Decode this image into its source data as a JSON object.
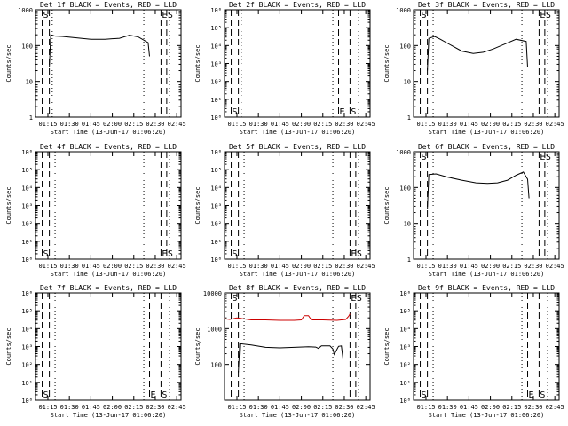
{
  "figure": {
    "xlabel": "Start Time (13-Jun-17 01:06:20)",
    "ylabel": "Counts/sec",
    "xticks": [
      "01:15",
      "01:30",
      "01:45",
      "02:00",
      "02:15",
      "02:30",
      "02:45"
    ],
    "colors": {
      "events": "#000000",
      "lld": "#cc0000"
    }
  },
  "chart_data": [
    {
      "type": "line",
      "title": "Det 1f BLACK = Events, RED = LLD",
      "ylabel": "Counts/sec",
      "yscale": "log",
      "ylim": [
        1,
        1000
      ],
      "yticks": [
        "1",
        "10",
        "100",
        "1000"
      ],
      "markers": [
        {
          "kind": "dashed",
          "x": "01:11",
          "label": "S"
        },
        {
          "kind": "dashed",
          "x": "01:16",
          "label": ""
        },
        {
          "kind": "dotted",
          "x": "01:18",
          "label": ""
        },
        {
          "kind": "dotted",
          "x": "02:22",
          "label": ""
        },
        {
          "kind": "dashed",
          "x": "02:34",
          "label": "E"
        },
        {
          "kind": "dashed",
          "x": "02:38",
          "label": "S"
        },
        {
          "kind": "dotted",
          "x": "02:40",
          "label": ""
        }
      ],
      "series": [
        {
          "color": "#000000",
          "points": [
            [
              "01:16",
              25
            ],
            [
              "01:17",
              200
            ],
            [
              "01:20",
              185
            ],
            [
              "01:25",
              180
            ],
            [
              "01:35",
              165
            ],
            [
              "01:45",
              150
            ],
            [
              "01:55",
              150
            ],
            [
              "02:05",
              160
            ],
            [
              "02:12",
              195
            ],
            [
              "02:18",
              175
            ],
            [
              "02:25",
              120
            ],
            [
              "02:26",
              50
            ]
          ]
        }
      ]
    },
    {
      "type": "line",
      "title": "Det 2f BLACK = Events, RED = LLD",
      "ylabel": "Counts/sec",
      "yscale": "log",
      "ylim": [
        1,
        1000000
      ],
      "yticks": [
        "10⁰",
        "10¹",
        "10²",
        "10³",
        "10⁴",
        "10⁵",
        "10⁶"
      ],
      "markers": [
        {
          "kind": "dashed",
          "x": "01:11",
          "label": "S"
        },
        {
          "kind": "dashed",
          "x": "01:16",
          "label": ""
        },
        {
          "kind": "dotted",
          "x": "01:18",
          "label": ""
        },
        {
          "kind": "dotted",
          "x": "02:22",
          "label": ""
        },
        {
          "kind": "dashed",
          "x": "02:26",
          "label": "E"
        },
        {
          "kind": "dashed",
          "x": "02:34",
          "label": "S"
        },
        {
          "kind": "dotted",
          "x": "02:40",
          "label": ""
        }
      ],
      "series": []
    },
    {
      "type": "line",
      "title": "Det 3f BLACK = Events, RED = LLD",
      "ylabel": "Counts/sec",
      "yscale": "log",
      "ylim": [
        1,
        1000
      ],
      "yticks": [
        "1",
        "10",
        "100",
        "1000"
      ],
      "markers": [
        {
          "kind": "dashed",
          "x": "01:11",
          "label": "S"
        },
        {
          "kind": "dashed",
          "x": "01:16",
          "label": ""
        },
        {
          "kind": "dotted",
          "x": "01:20",
          "label": ""
        },
        {
          "kind": "dotted",
          "x": "02:22",
          "label": ""
        },
        {
          "kind": "dashed",
          "x": "02:34",
          "label": "E"
        },
        {
          "kind": "dashed",
          "x": "02:38",
          "label": "S"
        },
        {
          "kind": "dotted",
          "x": "02:40",
          "label": ""
        }
      ],
      "series": [
        {
          "color": "#000000",
          "points": [
            [
              "01:16",
              20
            ],
            [
              "01:17",
              160
            ],
            [
              "01:21",
              180
            ],
            [
              "01:25",
              150
            ],
            [
              "01:32",
              105
            ],
            [
              "01:40",
              70
            ],
            [
              "01:48",
              60
            ],
            [
              "01:55",
              65
            ],
            [
              "02:02",
              80
            ],
            [
              "02:10",
              110
            ],
            [
              "02:18",
              150
            ],
            [
              "02:25",
              130
            ],
            [
              "02:26",
              25
            ]
          ]
        }
      ]
    },
    {
      "type": "line",
      "title": "Det 4f BLACK = Events, RED = LLD",
      "ylabel": "Counts/sec",
      "yscale": "log",
      "ylim": [
        1,
        1000000
      ],
      "yticks": [
        "10⁰",
        "10¹",
        "10²",
        "10³",
        "10⁴",
        "10⁵",
        "10⁶"
      ],
      "markers": [
        {
          "kind": "dashed",
          "x": "01:11",
          "label": "S"
        },
        {
          "kind": "dashed",
          "x": "01:16",
          "label": ""
        },
        {
          "kind": "dotted",
          "x": "01:20",
          "label": ""
        },
        {
          "kind": "dotted",
          "x": "02:22",
          "label": ""
        },
        {
          "kind": "dashed",
          "x": "02:34",
          "label": "E"
        },
        {
          "kind": "dashed",
          "x": "02:38",
          "label": "S"
        },
        {
          "kind": "dotted",
          "x": "02:40",
          "label": ""
        }
      ],
      "series": []
    },
    {
      "type": "line",
      "title": "Det 5f BLACK = Events, RED = LLD",
      "ylabel": "Counts/sec",
      "yscale": "log",
      "ylim": [
        1,
        1000000
      ],
      "yticks": [
        "10⁰",
        "10¹",
        "10²",
        "10³",
        "10⁴",
        "10⁵",
        "10⁶"
      ],
      "markers": [
        {
          "kind": "dashed",
          "x": "01:11",
          "label": "S"
        },
        {
          "kind": "dashed",
          "x": "01:16",
          "label": ""
        },
        {
          "kind": "dotted",
          "x": "01:20",
          "label": ""
        },
        {
          "kind": "dotted",
          "x": "02:22",
          "label": ""
        },
        {
          "kind": "dashed",
          "x": "02:34",
          "label": "E"
        },
        {
          "kind": "dashed",
          "x": "02:38",
          "label": "S"
        },
        {
          "kind": "dotted",
          "x": "02:40",
          "label": ""
        }
      ],
      "series": []
    },
    {
      "type": "line",
      "title": "Det 6f BLACK = Events, RED = LLD",
      "ylabel": "Counts/sec",
      "yscale": "log",
      "ylim": [
        1,
        1000
      ],
      "yticks": [
        "1",
        "10",
        "100",
        "1000"
      ],
      "markers": [
        {
          "kind": "dashed",
          "x": "01:11",
          "label": "S"
        },
        {
          "kind": "dashed",
          "x": "01:16",
          "label": ""
        },
        {
          "kind": "dotted",
          "x": "01:20",
          "label": ""
        },
        {
          "kind": "dotted",
          "x": "02:22",
          "label": ""
        },
        {
          "kind": "dashed",
          "x": "02:34",
          "label": "E"
        },
        {
          "kind": "dashed",
          "x": "02:38",
          "label": "S"
        },
        {
          "kind": "dotted",
          "x": "02:40",
          "label": ""
        }
      ],
      "series": [
        {
          "color": "#000000",
          "points": [
            [
              "01:16",
              25
            ],
            [
              "01:17",
              230
            ],
            [
              "01:22",
              240
            ],
            [
              "01:30",
              195
            ],
            [
              "01:40",
              160
            ],
            [
              "01:50",
              135
            ],
            [
              "01:58",
              130
            ],
            [
              "02:05",
              135
            ],
            [
              "02:12",
              160
            ],
            [
              "02:18",
              220
            ],
            [
              "02:23",
              270
            ],
            [
              "02:26",
              170
            ],
            [
              "02:27",
              50
            ]
          ]
        }
      ]
    },
    {
      "type": "line",
      "title": "Det 7f BLACK = Events, RED = LLD",
      "ylabel": "Counts/sec",
      "yscale": "log",
      "ylim": [
        1,
        1000000
      ],
      "yticks": [
        "10⁰",
        "10¹",
        "10²",
        "10³",
        "10⁴",
        "10⁵",
        "10⁶"
      ],
      "markers": [
        {
          "kind": "dashed",
          "x": "01:11",
          "label": "S"
        },
        {
          "kind": "dashed",
          "x": "01:16",
          "label": ""
        },
        {
          "kind": "dotted",
          "x": "01:20",
          "label": ""
        },
        {
          "kind": "dotted",
          "x": "02:22",
          "label": ""
        },
        {
          "kind": "dashed",
          "x": "02:26",
          "label": "E"
        },
        {
          "kind": "dashed",
          "x": "02:34",
          "label": "S"
        },
        {
          "kind": "dotted",
          "x": "02:40",
          "label": ""
        }
      ],
      "series": []
    },
    {
      "type": "line",
      "title": "Det 8f BLACK = Events, RED = LLD",
      "ylabel": "Counts/sec",
      "yscale": "log",
      "ylim": [
        10,
        10000
      ],
      "yticks": [
        "100",
        "1000",
        "10000"
      ],
      "markers": [
        {
          "kind": "dashed",
          "x": "01:11",
          "label": "S"
        },
        {
          "kind": "dashed",
          "x": "01:16",
          "label": ""
        },
        {
          "kind": "dotted",
          "x": "01:20",
          "label": ""
        },
        {
          "kind": "dotted",
          "x": "02:22",
          "label": ""
        },
        {
          "kind": "dashed",
          "x": "02:34",
          "label": "E"
        },
        {
          "kind": "dashed",
          "x": "02:38",
          "label": "S"
        },
        {
          "kind": "dotted",
          "x": "02:40",
          "label": ""
        }
      ],
      "series": [
        {
          "color": "#000000",
          "points": [
            [
              "01:16",
              60
            ],
            [
              "01:17",
              380
            ],
            [
              "01:25",
              350
            ],
            [
              "01:35",
              300
            ],
            [
              "01:45",
              290
            ],
            [
              "01:55",
              300
            ],
            [
              "02:05",
              310
            ],
            [
              "02:10",
              305
            ],
            [
              "02:12",
              280
            ],
            [
              "02:14",
              330
            ],
            [
              "02:20",
              330
            ],
            [
              "02:22",
              270
            ],
            [
              "02:23",
              190
            ],
            [
              "02:26",
              320
            ],
            [
              "02:28",
              330
            ],
            [
              "02:29",
              150
            ]
          ]
        },
        {
          "color": "#cc0000",
          "points": [
            [
              "01:06",
              1900
            ],
            [
              "01:10",
              1800
            ],
            [
              "01:15",
              2000
            ],
            [
              "01:25",
              1750
            ],
            [
              "01:35",
              1750
            ],
            [
              "01:45",
              1700
            ],
            [
              "01:55",
              1700
            ],
            [
              "02:00",
              1750
            ],
            [
              "02:02",
              2300
            ],
            [
              "02:05",
              2300
            ],
            [
              "02:07",
              1750
            ],
            [
              "02:15",
              1750
            ],
            [
              "02:25",
              1700
            ],
            [
              "02:31",
              1800
            ],
            [
              "02:33",
              2200
            ],
            [
              "02:34",
              2600
            ]
          ]
        }
      ]
    },
    {
      "type": "line",
      "title": "Det 9f BLACK = Events, RED = LLD",
      "ylabel": "Counts/sec",
      "yscale": "log",
      "ylim": [
        1,
        1000000
      ],
      "yticks": [
        "10⁰",
        "10¹",
        "10²",
        "10³",
        "10⁴",
        "10⁵",
        "10⁶"
      ],
      "markers": [
        {
          "kind": "dashed",
          "x": "01:11",
          "label": "S"
        },
        {
          "kind": "dashed",
          "x": "01:16",
          "label": ""
        },
        {
          "kind": "dotted",
          "x": "01:20",
          "label": ""
        },
        {
          "kind": "dotted",
          "x": "02:22",
          "label": ""
        },
        {
          "kind": "dashed",
          "x": "02:26",
          "label": "E"
        },
        {
          "kind": "dashed",
          "x": "02:34",
          "label": "S"
        },
        {
          "kind": "dotted",
          "x": "02:40",
          "label": ""
        }
      ],
      "series": []
    }
  ]
}
